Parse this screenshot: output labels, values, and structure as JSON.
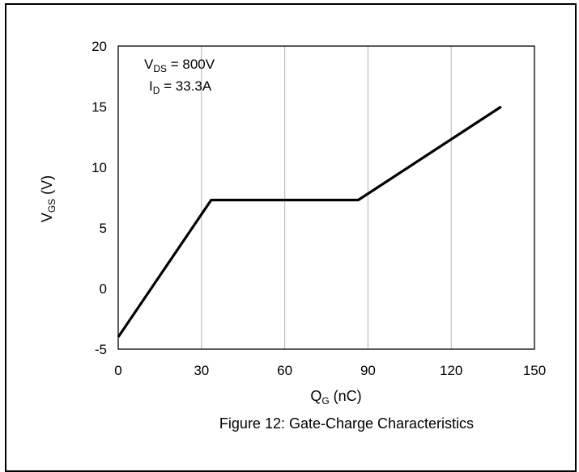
{
  "chart_data": {
    "type": "line",
    "title": "",
    "caption": "Figure 12: Gate-Charge Characteristics",
    "xlabel": {
      "main": "Q",
      "sub": "G",
      "unit": " (nC)"
    },
    "ylabel": {
      "main": "V",
      "sub": "GS",
      "unit": " (V)"
    },
    "xlim": [
      0,
      150
    ],
    "ylim": [
      -5,
      20
    ],
    "xticks": [
      0,
      30,
      60,
      90,
      120,
      150
    ],
    "yticks": [
      -5,
      0,
      5,
      10,
      15,
      20
    ],
    "grid": {
      "vertical": true,
      "horizontal": false
    },
    "annotations": [
      {
        "main": "V",
        "sub": "DS",
        "rest": " = 800V"
      },
      {
        "main": "I",
        "sub": "D",
        "rest": " = 33.3A"
      }
    ],
    "series": [
      {
        "x": [
          0,
          33.5,
          86.5,
          138
        ],
        "y": [
          -4,
          7.3,
          7.3,
          15
        ],
        "color": "#000000"
      }
    ]
  }
}
